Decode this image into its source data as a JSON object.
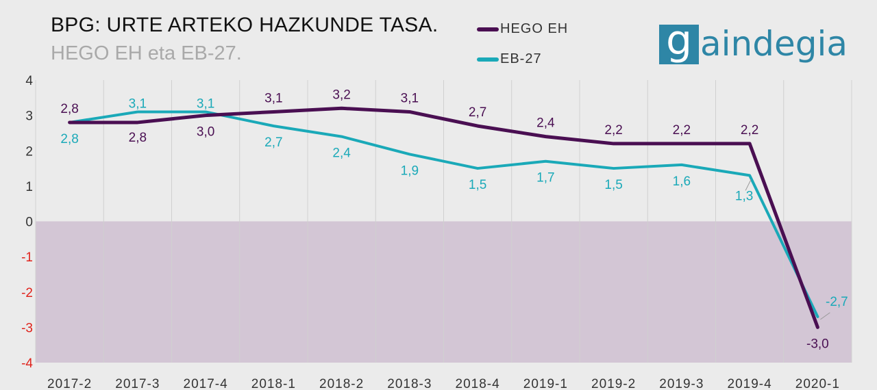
{
  "title": "BPG: URTE ARTEKO HAZKUNDE TASA.",
  "subtitle": "HEGO EH eta EB-27.",
  "logo": {
    "box_letter": "g",
    "text": "aindegia"
  },
  "colors": {
    "hego_eh": "#4a0f52",
    "eb27": "#1aa9b8",
    "negative_band": "#d3c6d5",
    "negative_tick": "#e0231c",
    "grid": "#d0d0d0"
  },
  "chart_data": {
    "type": "line",
    "title": "BPG: URTE ARTEKO HAZKUNDE TASA.",
    "subtitle": "HEGO EH eta EB-27.",
    "categories": [
      "2017-2",
      "2017-3",
      "2017-4",
      "2018-1",
      "2018-2",
      "2018-3",
      "2018-4",
      "2019-1",
      "2019-2",
      "2019-3",
      "2019-4",
      "2020-1"
    ],
    "ylim": [
      -4,
      4
    ],
    "yticks": [
      "4",
      "3",
      "2",
      "1",
      "0",
      "-1",
      "-2",
      "-3",
      "-4"
    ],
    "grid": "vertical",
    "negative_region_shaded": true,
    "legend_position": "top-center",
    "series": [
      {
        "name": "HEGO EH",
        "color": "#4a0f52",
        "values": [
          2.8,
          2.8,
          3.0,
          3.1,
          3.2,
          3.1,
          2.7,
          2.4,
          2.2,
          2.2,
          2.2,
          -3.0
        ],
        "labels": [
          "2,8",
          "2,8",
          "3,0",
          "3,1",
          "3,2",
          "3,1",
          "2,7",
          "2,4",
          "2,2",
          "2,2",
          "2,2",
          "-3,0"
        ]
      },
      {
        "name": "EB-27",
        "color": "#1aa9b8",
        "values": [
          2.8,
          3.1,
          3.1,
          2.7,
          2.4,
          1.9,
          1.5,
          1.7,
          1.5,
          1.6,
          1.3,
          -2.7
        ],
        "labels": [
          "2,8",
          "3,1",
          "3,1",
          "2,7",
          "2,4",
          "1,9",
          "1,5",
          "1,7",
          "1,5",
          "1,6",
          "1,3",
          "-2,7"
        ]
      }
    ]
  }
}
